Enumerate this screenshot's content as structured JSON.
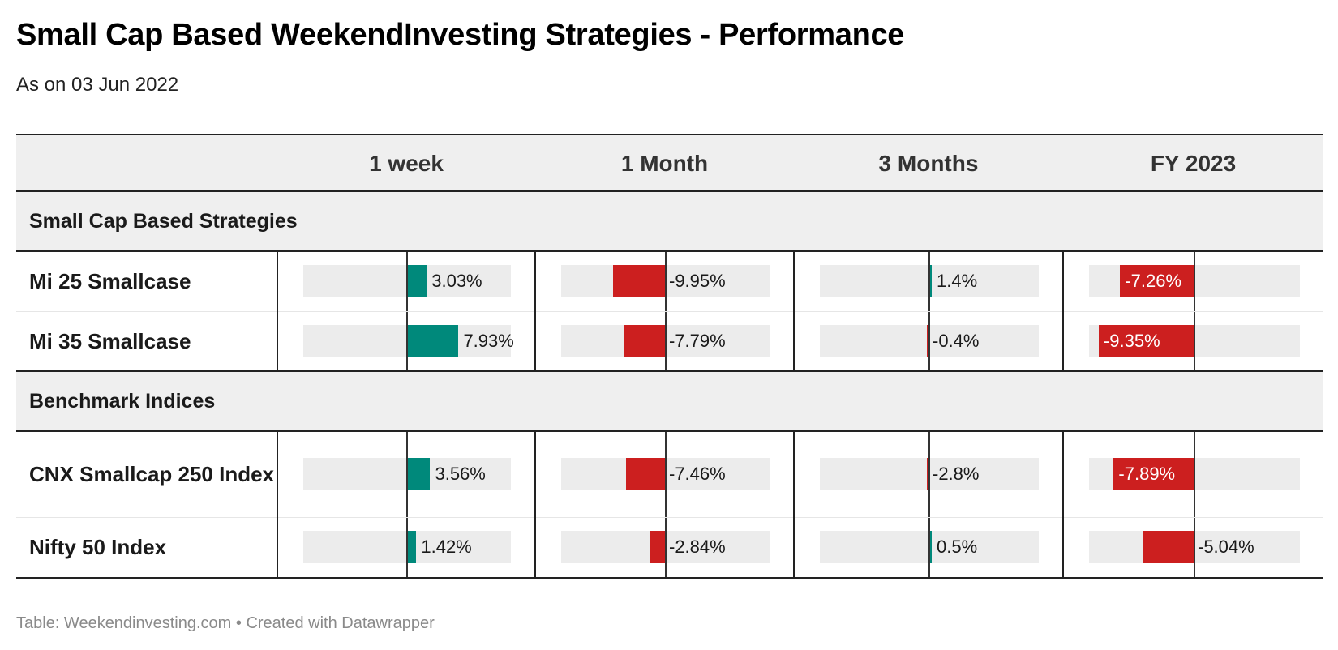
{
  "title": "Small Cap Based WeekendInvesting Strategies - Performance",
  "subtitle": "As on 03 Jun 2022",
  "footer": "Table: Weekendinvesting.com • Created with Datawrapper",
  "colors": {
    "positive": "#00897b",
    "negative": "#cc1f1f",
    "bar_background": "#ececec",
    "header_background": "#efefef"
  },
  "chart_data": {
    "type": "table",
    "columns": [
      "",
      "1 week",
      "1 Month",
      "3 Months",
      "FY 2023"
    ],
    "groups": [
      {
        "label": "Small Cap Based Strategies",
        "rows": [
          {
            "name": "Mi 25 Smallcase",
            "values": [
              3.03,
              -9.95,
              1.4,
              -7.26
            ],
            "labels": [
              "3.03%",
              "-9.95%",
              "1.4%",
              "-7.26%"
            ]
          },
          {
            "name": "Mi 35 Smallcase",
            "values": [
              7.93,
              -7.79,
              -0.4,
              -9.35
            ],
            "labels": [
              "7.93%",
              "-7.79%",
              "-0.4%",
              "-9.35%"
            ]
          }
        ]
      },
      {
        "label": "Benchmark Indices",
        "rows": [
          {
            "name": "CNX Smallcap 250 Index",
            "values": [
              3.56,
              -7.46,
              -2.8,
              -7.89
            ],
            "labels": [
              "3.56%",
              "-7.46%",
              "-2.8%",
              "-7.89%"
            ]
          },
          {
            "name": "Nifty 50 Index",
            "values": [
              1.42,
              -2.84,
              0.5,
              -5.04
            ],
            "labels": [
              "1.42%",
              "-2.84%",
              "0.5%",
              "-5.04%"
            ]
          }
        ]
      }
    ]
  }
}
